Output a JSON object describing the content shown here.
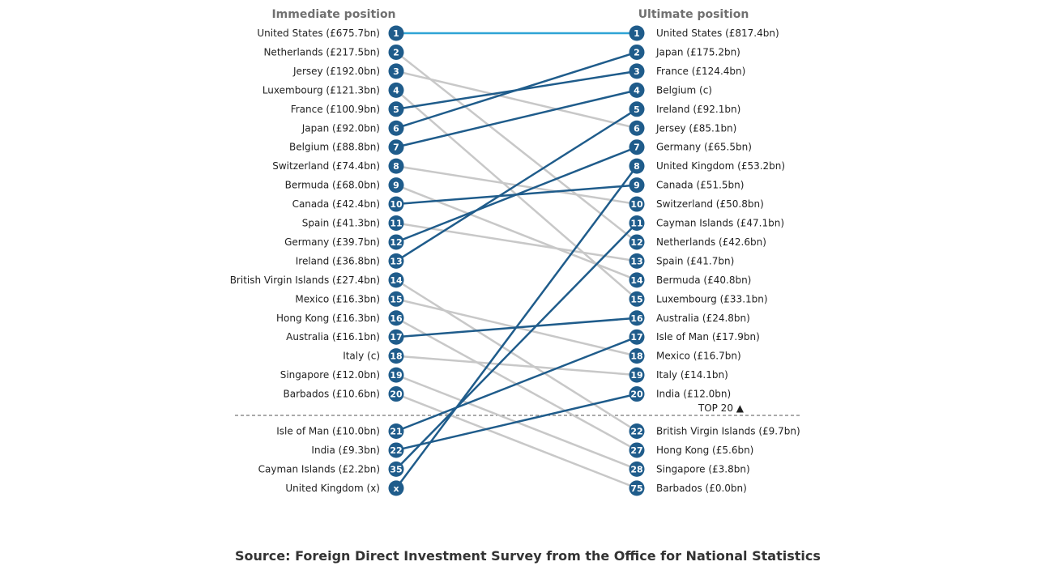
{
  "colors": {
    "accent_line": "#2fa4d6",
    "moved_up_line": "#1f5c8b",
    "moved_down_line": "#c8c8c8",
    "badge": "#1f5c8b",
    "divider": "#555555"
  },
  "footer": {
    "source": "Source: Foreign Direct Investment Survey from the Office for National Statistics"
  },
  "chart_data": {
    "type": "slope",
    "left_header": "Immediate position",
    "right_header": "Ultimate position",
    "top_marker": "TOP 20 ▲",
    "left": [
      {
        "rank": "1",
        "label": "United States (£675.7bn)"
      },
      {
        "rank": "2",
        "label": "Netherlands (£217.5bn)"
      },
      {
        "rank": "3",
        "label": "Jersey (£192.0bn)"
      },
      {
        "rank": "4",
        "label": "Luxembourg (£121.3bn)"
      },
      {
        "rank": "5",
        "label": "France (£100.9bn)"
      },
      {
        "rank": "6",
        "label": "Japan (£92.0bn)"
      },
      {
        "rank": "7",
        "label": "Belgium (£88.8bn)"
      },
      {
        "rank": "8",
        "label": "Switzerland (£74.4bn)"
      },
      {
        "rank": "9",
        "label": "Bermuda (£68.0bn)"
      },
      {
        "rank": "10",
        "label": "Canada (£42.4bn)"
      },
      {
        "rank": "11",
        "label": "Spain (£41.3bn)"
      },
      {
        "rank": "12",
        "label": "Germany (£39.7bn)"
      },
      {
        "rank": "13",
        "label": "Ireland (£36.8bn)"
      },
      {
        "rank": "14",
        "label": "British Virgin Islands (£27.4bn)"
      },
      {
        "rank": "15",
        "label": "Mexico (£16.3bn)"
      },
      {
        "rank": "16",
        "label": "Hong Kong (£16.3bn)"
      },
      {
        "rank": "17",
        "label": "Australia (£16.1bn)"
      },
      {
        "rank": "18",
        "label": "Italy (c)"
      },
      {
        "rank": "19",
        "label": "Singapore (£12.0bn)"
      },
      {
        "rank": "20",
        "label": "Barbados (£10.6bn)"
      },
      {
        "rank": "21",
        "label": "Isle of Man (£10.0bn)"
      },
      {
        "rank": "22",
        "label": "India (£9.3bn)"
      },
      {
        "rank": "35",
        "label": "Cayman Islands (£2.2bn)"
      },
      {
        "rank": "x",
        "label": "United Kingdom (x)"
      }
    ],
    "right": [
      {
        "rank": "1",
        "label": "United States (£817.4bn)"
      },
      {
        "rank": "2",
        "label": "Japan (£175.2bn)"
      },
      {
        "rank": "3",
        "label": "France (£124.4bn)"
      },
      {
        "rank": "4",
        "label": "Belgium (c)"
      },
      {
        "rank": "5",
        "label": "Ireland (£92.1bn)"
      },
      {
        "rank": "6",
        "label": "Jersey (£85.1bn)"
      },
      {
        "rank": "7",
        "label": "Germany (£65.5bn)"
      },
      {
        "rank": "8",
        "label": "United Kingdom (£53.2bn)"
      },
      {
        "rank": "9",
        "label": "Canada (£51.5bn)"
      },
      {
        "rank": "10",
        "label": "Switzerland (£50.8bn)"
      },
      {
        "rank": "11",
        "label": "Cayman Islands (£47.1bn)"
      },
      {
        "rank": "12",
        "label": "Netherlands (£42.6bn)"
      },
      {
        "rank": "13",
        "label": "Spain (£41.7bn)"
      },
      {
        "rank": "14",
        "label": "Bermuda (£40.8bn)"
      },
      {
        "rank": "15",
        "label": "Luxembourg (£33.1bn)"
      },
      {
        "rank": "16",
        "label": "Australia (£24.8bn)"
      },
      {
        "rank": "17",
        "label": "Isle of Man (£17.9bn)"
      },
      {
        "rank": "18",
        "label": "Mexico (£16.7bn)"
      },
      {
        "rank": "19",
        "label": "Italy (£14.1bn)"
      },
      {
        "rank": "20",
        "label": "India (£12.0bn)"
      },
      {
        "rank": "22",
        "label": "British Virgin Islands (£9.7bn)"
      },
      {
        "rank": "27",
        "label": "Hong Kong (£5.6bn)"
      },
      {
        "rank": "28",
        "label": "Singapore (£3.8bn)"
      },
      {
        "rank": "75",
        "label": "Barbados (£0.0bn)"
      }
    ],
    "links": [
      {
        "from": "1",
        "to": "1",
        "style": "accent"
      },
      {
        "from": "2",
        "to": "12",
        "style": "down"
      },
      {
        "from": "3",
        "to": "6",
        "style": "down"
      },
      {
        "from": "4",
        "to": "15",
        "style": "down"
      },
      {
        "from": "5",
        "to": "3",
        "style": "up"
      },
      {
        "from": "6",
        "to": "2",
        "style": "up"
      },
      {
        "from": "7",
        "to": "4",
        "style": "up"
      },
      {
        "from": "8",
        "to": "10",
        "style": "down"
      },
      {
        "from": "9",
        "to": "14",
        "style": "down"
      },
      {
        "from": "10",
        "to": "9",
        "style": "up"
      },
      {
        "from": "11",
        "to": "13",
        "style": "down"
      },
      {
        "from": "12",
        "to": "7",
        "style": "up"
      },
      {
        "from": "13",
        "to": "5",
        "style": "up"
      },
      {
        "from": "14",
        "to": "22",
        "style": "down"
      },
      {
        "from": "15",
        "to": "18",
        "style": "down"
      },
      {
        "from": "16",
        "to": "27",
        "style": "down"
      },
      {
        "from": "17",
        "to": "16",
        "style": "up"
      },
      {
        "from": "18",
        "to": "19",
        "style": "down"
      },
      {
        "from": "19",
        "to": "28",
        "style": "down"
      },
      {
        "from": "20",
        "to": "75",
        "style": "down"
      },
      {
        "from": "21",
        "to": "17",
        "style": "up"
      },
      {
        "from": "22",
        "to": "20",
        "style": "up"
      },
      {
        "from": "35",
        "to": "11",
        "style": "up"
      },
      {
        "from": "x",
        "to": "8",
        "style": "up"
      }
    ]
  }
}
